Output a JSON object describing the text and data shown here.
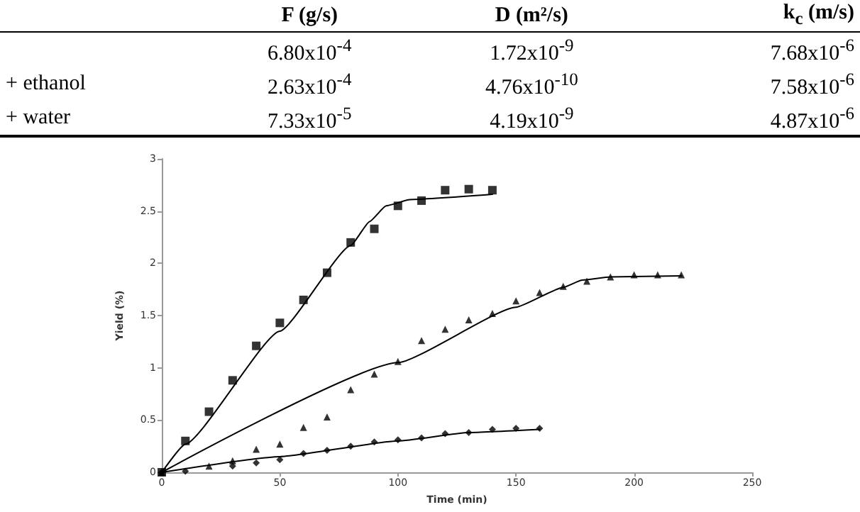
{
  "chart_data": [
    {
      "type": "other",
      "categories": [
        null,
        "F (g/s)",
        "D (m²/s)",
        "k$_{c}$ (m/s)"
      ],
      "y_categories": [
        null,
        "+ ethanol",
        "+ water"
      ],
      "cell_labels": [
        [
          "6.80x10$^{-4}$",
          "1.72x10$^{-9}$",
          "7.68x10$^{-6}$"
        ],
        [
          "2.63x10$^{-4}$",
          "4.76x10$^{-10}$",
          "7.58x10$^{-6}$"
        ],
        [
          "7.33x10$^{-5}$",
          "4.19x10$^{-9}$",
          "4.87x10$^{-6}$"
        ]
      ]
    },
    {
      "type": "scatter",
      "xlabel": "Time (min)",
      "ylabel": "Yield (%)",
      "xlim": [
        0,
        250
      ],
      "xticks": [
        0,
        50,
        100,
        150,
        200,
        250
      ],
      "ylim": [
        0,
        3
      ],
      "yticks": [
        0,
        0.5,
        1,
        1.5,
        2,
        2.5,
        3
      ],
      "grid": false,
      "series": [
        {
          "type": "line",
          "color": "#000000",
          "marker": "none",
          "x": [
            0,
            10,
            50,
            80,
            88,
            95,
            105,
            140
          ],
          "values": [
            0,
            0.27,
            1.35,
            2.17,
            2.4,
            2.55,
            2.61,
            2.66
          ]
        },
        {
          "type": "line",
          "color": "#000000",
          "marker": "none",
          "x": [
            0,
            100,
            150,
            170,
            178,
            190,
            220
          ],
          "values": [
            0,
            1.05,
            1.58,
            1.77,
            1.84,
            1.87,
            1.88
          ]
        },
        {
          "type": "line",
          "color": "#000000",
          "marker": "none",
          "x": [
            0,
            50,
            100,
            130,
            160
          ],
          "values": [
            0,
            0.15,
            0.3,
            0.38,
            0.41
          ]
        },
        {
          "type": "scatter",
          "color": "#000000",
          "marker": "square",
          "x": [
            0,
            10,
            20,
            30,
            40,
            50,
            60,
            70,
            80,
            90,
            100,
            110,
            120,
            130,
            140
          ],
          "values": [
            0,
            0.3,
            0.58,
            0.88,
            1.21,
            1.43,
            1.65,
            1.91,
            2.2,
            2.33,
            2.55,
            2.6,
            2.7,
            2.71,
            2.7
          ]
        },
        {
          "type": "scatter",
          "color": "#000000",
          "marker": "triangle",
          "x": [
            0,
            20,
            30,
            40,
            50,
            60,
            70,
            80,
            90,
            100,
            110,
            120,
            130,
            140,
            150,
            160,
            170,
            180,
            190,
            200,
            210,
            220
          ],
          "values": [
            0,
            0.06,
            0.11,
            0.22,
            0.27,
            0.43,
            0.53,
            0.79,
            0.94,
            1.06,
            1.26,
            1.37,
            1.46,
            1.52,
            1.64,
            1.72,
            1.78,
            1.83,
            1.87,
            1.89,
            1.89,
            1.89
          ]
        },
        {
          "type": "scatter",
          "color": "#000000",
          "marker": "diamond",
          "x": [
            0,
            10,
            20,
            30,
            40,
            50,
            60,
            70,
            80,
            90,
            100,
            110,
            120,
            130,
            140,
            150,
            160
          ],
          "values": [
            0,
            0.01,
            null,
            0.06,
            0.09,
            0.12,
            0.18,
            0.21,
            0.25,
            0.29,
            0.31,
            0.33,
            0.37,
            0.38,
            0.41,
            0.42,
            0.42
          ]
        }
      ]
    }
  ]
}
